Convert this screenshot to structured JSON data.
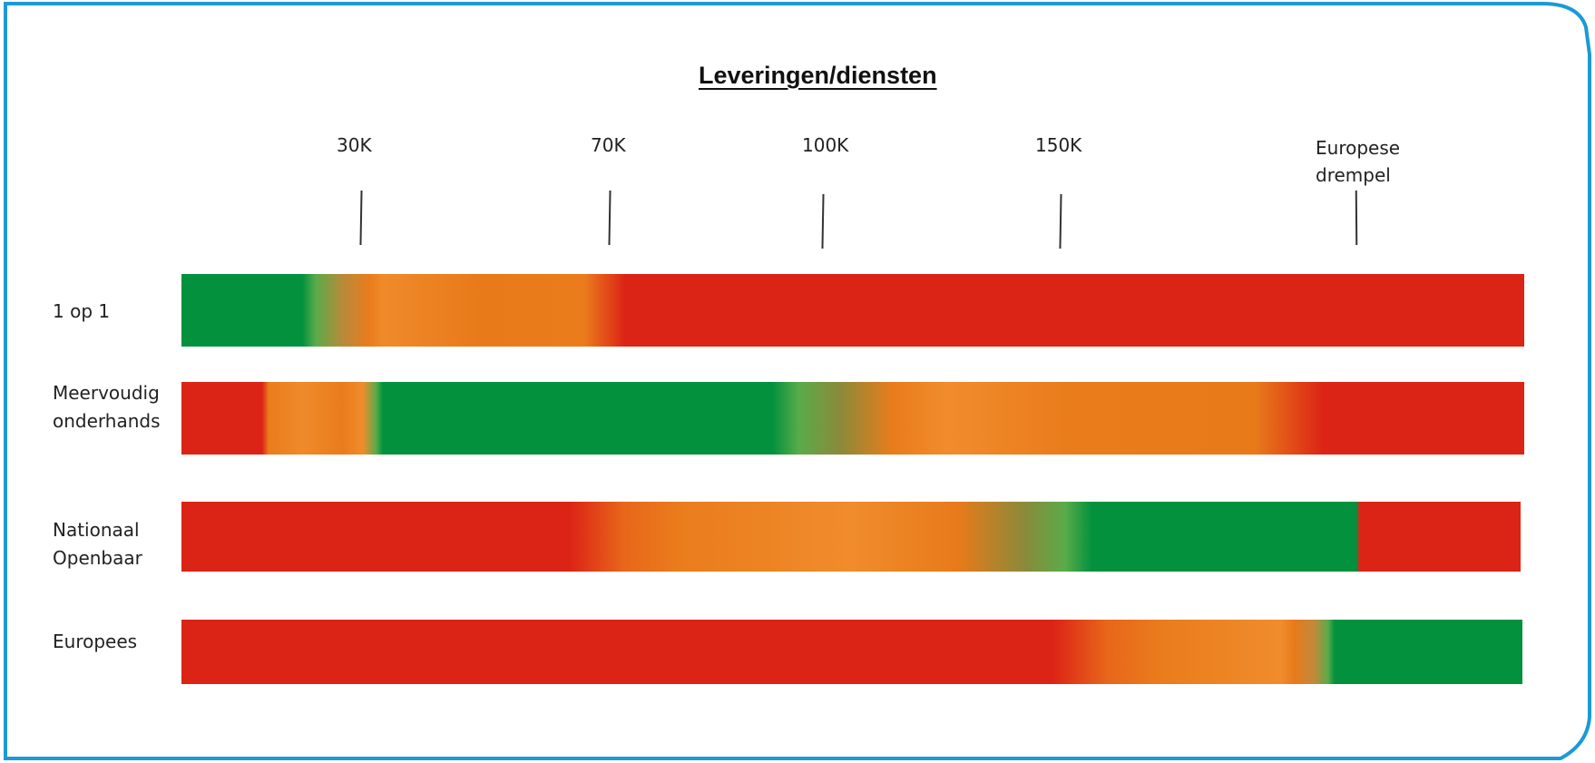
{
  "title": "Leveringen/diensten",
  "thresholds": [
    {
      "label": "30K"
    },
    {
      "label": "70K"
    },
    {
      "label": "100K"
    },
    {
      "label": "150K"
    },
    {
      "label": "Europese drempel",
      "line1": "Europese",
      "line2": "drempel"
    }
  ],
  "rows": [
    {
      "label": "1 op 1",
      "line1": "1 op 1",
      "line2": ""
    },
    {
      "label": "Meervoudig onderhands",
      "line1": "Meervoudig",
      "line2": "onderhands"
    },
    {
      "label": "Nationaal Openbaar",
      "line1": "Nationaal",
      "line2": "Openbaar"
    },
    {
      "label": "Europees",
      "line1": "Europees",
      "line2": ""
    }
  ],
  "colors": {
    "green": "#03913d",
    "orange": "#ea7c1c",
    "red": "#dc2416",
    "frame": "#1a9ad6"
  }
}
